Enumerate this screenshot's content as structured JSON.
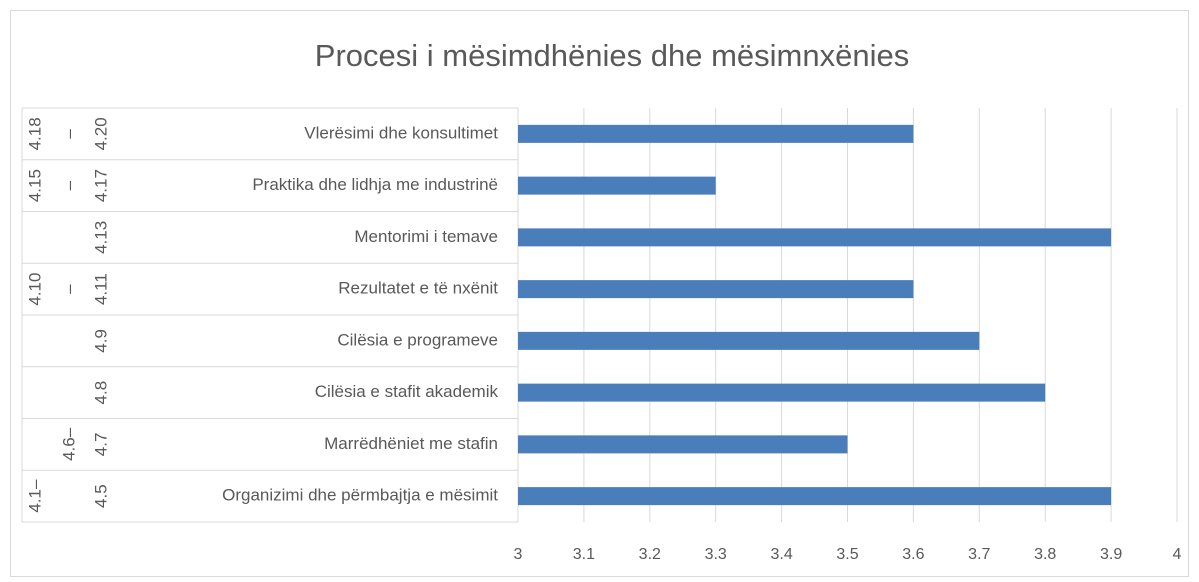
{
  "chart_data": {
    "type": "bar",
    "orientation": "horizontal",
    "title": "Procesi i mësimdhënies dhe mësimnxënies",
    "categories": [
      "Vlerësimi dhe konsultimet",
      "Praktika dhe lidhja me industrinë",
      "Mentorimi i temave",
      "Rezultatet e të nxënit",
      "Cilësia e programeve",
      "Cilësia e stafit akademik",
      "Marrëdhëniet me stafin",
      "Organizimi dhe përmbajtja e mësimit"
    ],
    "group_labels": [
      [
        "4.18",
        "–",
        "4.20"
      ],
      [
        "4.15",
        "–",
        "4.17"
      ],
      [
        null,
        null,
        "4.13"
      ],
      [
        "4.10",
        "–",
        "4.11"
      ],
      [
        null,
        null,
        "4.9"
      ],
      [
        null,
        null,
        "4.8"
      ],
      [
        null,
        "4.6–",
        "4.7"
      ],
      [
        "4.1–",
        null,
        "4.5"
      ]
    ],
    "values": [
      3.6,
      3.3,
      3.9,
      3.6,
      3.7,
      3.8,
      3.5,
      3.9
    ],
    "color": "#4a7ebb",
    "xlim": [
      3,
      4
    ],
    "xticks": [
      3,
      3.1,
      3.2,
      3.3,
      3.4,
      3.5,
      3.6,
      3.7,
      3.8,
      3.9,
      4
    ],
    "grid": true
  }
}
